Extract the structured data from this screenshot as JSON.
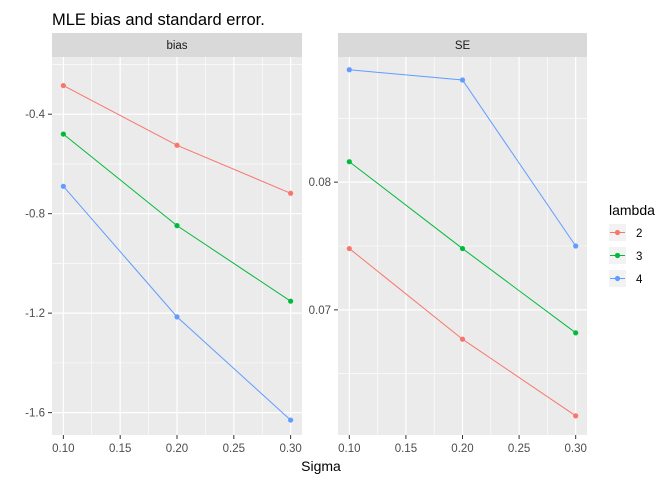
{
  "chart_data": {
    "type": "line",
    "title": "MLE bias and standard error.",
    "xlabel": "Sigma",
    "ylabel": "",
    "x": [
      0.1,
      0.2,
      0.3
    ],
    "x_ticks": [
      "0.10",
      "0.15",
      "0.20",
      "0.25",
      "0.30"
    ],
    "x_tick_values": [
      0.1,
      0.15,
      0.2,
      0.25,
      0.3
    ],
    "xlim": [
      0.09,
      0.31
    ],
    "legend": {
      "title": "lambda",
      "placement": "right"
    },
    "grid": true,
    "panels": [
      {
        "strip": "bias",
        "ylim": [
          -1.69,
          -0.17
        ],
        "y_ticks": [
          "-0.4",
          "-0.8",
          "-1.2",
          "-1.6"
        ],
        "y_tick_values": [
          -0.4,
          -0.8,
          -1.2,
          -1.6
        ],
        "series": [
          {
            "name": "2",
            "color": "#F8766D",
            "values": [
              -0.285,
              -0.525,
              -0.718
            ]
          },
          {
            "name": "3",
            "color": "#00BA38",
            "values": [
              -0.48,
              -0.848,
              -1.152
            ]
          },
          {
            "name": "4",
            "color": "#619CFF",
            "values": [
              -0.69,
              -1.215,
              -1.63
            ]
          }
        ]
      },
      {
        "strip": "SE",
        "ylim": [
          0.0602,
          0.0898
        ],
        "y_ticks": [
          "0.08",
          "0.07"
        ],
        "y_tick_values": [
          0.08,
          0.07
        ],
        "series": [
          {
            "name": "2",
            "color": "#F8766D",
            "values": [
              0.0748,
              0.0677,
              0.0617
            ]
          },
          {
            "name": "3",
            "color": "#00BA38",
            "values": [
              0.0816,
              0.0748,
              0.0682
            ]
          },
          {
            "name": "4",
            "color": "#619CFF",
            "values": [
              0.0888,
              0.088,
              0.075
            ]
          }
        ]
      }
    ]
  }
}
